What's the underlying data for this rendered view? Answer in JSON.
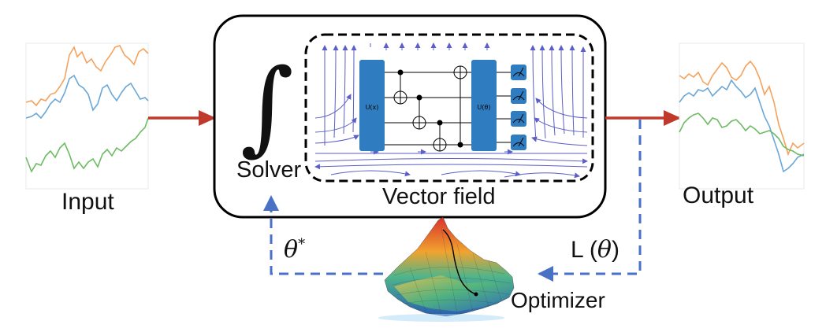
{
  "labels": {
    "input": "Input",
    "output": "Output",
    "solver": "Solver",
    "vector_field": "Vector field",
    "theta_star": "θ",
    "theta_star_sup": "*",
    "loss_prefix": "L (",
    "loss_theta": "θ",
    "loss_suffix": ")",
    "optimizer": "Optimizer",
    "integral": "∫"
  },
  "circuit": {
    "gate_left": "U(x)",
    "gate_right": "U(θ)"
  },
  "colors": {
    "series_orange": "#f5a25d",
    "series_blue": "#6aa7d6",
    "series_green": "#6dbb63",
    "flow_arrow": "#c0392b",
    "feedback_arrow": "#4a72c4",
    "gate_fill": "#2f7cc0",
    "field_lines": "#5b5fc7"
  }
}
